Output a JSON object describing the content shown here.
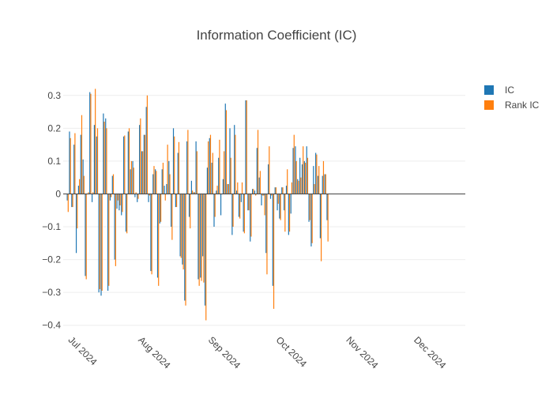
{
  "chart_data": {
    "type": "bar",
    "title": "Information Coefficient (IC)",
    "xlabel": "",
    "ylabel": "",
    "ylim": [
      -0.42,
      0.35
    ],
    "yticks": [
      -0.4,
      -0.3,
      -0.2,
      -0.1,
      0,
      0.1,
      0.2,
      0.3
    ],
    "ytick_labels": [
      "−0.4",
      "−0.3",
      "−0.2",
      "−0.1",
      "0",
      "0.1",
      "0.2",
      "0.3"
    ],
    "xlim": [
      "2024-06-29",
      "2024-12-24"
    ],
    "xticks": [
      {
        "date": "2024-07-01",
        "label": "Jul 2024"
      },
      {
        "date": "2024-08-01",
        "label": "Aug 2024"
      },
      {
        "date": "2024-09-01",
        "label": "Sep 2024"
      },
      {
        "date": "2024-10-01",
        "label": "Oct 2024"
      },
      {
        "date": "2024-11-01",
        "label": "Nov 2024"
      },
      {
        "date": "2024-12-01",
        "label": "Dec 2024"
      }
    ],
    "grid": true,
    "legend_position": "top-right",
    "series": [
      {
        "name": "IC",
        "color": "#1f77b4"
      },
      {
        "name": "Rank IC",
        "color": "#ff7f0e"
      }
    ],
    "points": [
      [
        "2024-07-01",
        -0.02,
        -0.055
      ],
      [
        "2024-07-02",
        0.19,
        0.17
      ],
      [
        "2024-07-03",
        -0.04,
        -0.04
      ],
      [
        "2024-07-04",
        0.15,
        0.185
      ],
      [
        "2024-07-05",
        -0.18,
        -0.105
      ],
      [
        "2024-07-06",
        0.025,
        0.045
      ],
      [
        "2024-07-07",
        0.18,
        0.24
      ],
      [
        "2024-07-08",
        0.105,
        0.055
      ],
      [
        "2024-07-09",
        -0.25,
        -0.26
      ],
      [
        "2024-07-10",
        0.0,
        0.005
      ],
      [
        "2024-07-11",
        0.31,
        0.305
      ],
      [
        "2024-07-12",
        -0.025,
        0.005
      ],
      [
        "2024-07-13",
        0.21,
        0.32
      ],
      [
        "2024-07-14",
        0.175,
        0.2
      ],
      [
        "2024-07-15",
        -0.3,
        -0.29
      ],
      [
        "2024-07-16",
        -0.31,
        -0.295
      ],
      [
        "2024-07-17",
        0.245,
        0.22
      ],
      [
        "2024-07-18",
        0.23,
        0.2
      ],
      [
        "2024-07-19",
        -0.295,
        -0.28
      ],
      [
        "2024-07-20",
        -0.02,
        -0.01
      ],
      [
        "2024-07-21",
        0.055,
        0.06
      ],
      [
        "2024-07-22",
        -0.2,
        -0.22
      ],
      [
        "2024-07-23",
        -0.045,
        -0.02
      ],
      [
        "2024-07-24",
        -0.05,
        -0.035
      ],
      [
        "2024-07-25",
        -0.065,
        -0.055
      ],
      [
        "2024-07-26",
        0.175,
        0.178
      ],
      [
        "2024-07-27",
        -0.115,
        -0.12
      ],
      [
        "2024-07-28",
        0.19,
        0.2
      ],
      [
        "2024-07-29",
        0.075,
        0.1
      ],
      [
        "2024-07-30",
        0.1,
        0.08
      ],
      [
        "2024-07-31",
        -0.01,
        0.005
      ],
      [
        "2024-08-01",
        -0.025,
        -0.015
      ],
      [
        "2024-08-02",
        0.21,
        0.23
      ],
      [
        "2024-08-03",
        0.13,
        0.13
      ],
      [
        "2024-08-04",
        0.18,
        0.18
      ],
      [
        "2024-08-05",
        0.265,
        0.3
      ],
      [
        "2024-08-06",
        -0.025,
        -0.005
      ],
      [
        "2024-08-07",
        -0.235,
        -0.245
      ],
      [
        "2024-08-08",
        0.06,
        0.085
      ],
      [
        "2024-08-09",
        0.075,
        0.07
      ],
      [
        "2024-08-10",
        -0.255,
        -0.28
      ],
      [
        "2024-08-11",
        -0.09,
        -0.085
      ],
      [
        "2024-08-12",
        0.075,
        0.095
      ],
      [
        "2024-08-13",
        0.025,
        -0.02
      ],
      [
        "2024-08-14",
        0.03,
        0.15
      ],
      [
        "2024-08-15",
        0.1,
        0.06
      ],
      [
        "2024-08-16",
        -0.1,
        -0.14
      ],
      [
        "2024-08-17",
        0.2,
        0.175
      ],
      [
        "2024-08-18",
        -0.04,
        -0.04
      ],
      [
        "2024-08-19",
        0.125,
        0.158
      ],
      [
        "2024-08-20",
        -0.19,
        -0.195
      ],
      [
        "2024-08-21",
        -0.215,
        -0.23
      ],
      [
        "2024-08-22",
        -0.325,
        -0.34
      ],
      [
        "2024-08-23",
        0.16,
        0.195
      ],
      [
        "2024-08-24",
        -0.07,
        -0.105
      ],
      [
        "2024-08-25",
        0.04,
        0.01
      ],
      [
        "2024-08-26",
        0.005,
        0.005
      ],
      [
        "2024-08-27",
        0.16,
        0.13
      ],
      [
        "2024-08-28",
        -0.26,
        -0.28
      ],
      [
        "2024-08-29",
        -0.255,
        -0.265
      ],
      [
        "2024-08-30",
        -0.19,
        -0.27
      ],
      [
        "2024-08-31",
        -0.34,
        -0.385
      ],
      [
        "2024-09-01",
        0.08,
        0.16
      ],
      [
        "2024-09-02",
        0.17,
        0.18
      ],
      [
        "2024-09-03",
        0.095,
        0.125
      ],
      [
        "2024-09-04",
        -0.1,
        -0.07
      ],
      [
        "2024-09-05",
        0.01,
        0.025
      ],
      [
        "2024-09-06",
        0.11,
        0.165
      ],
      [
        "2024-09-07",
        -0.065,
        0.0
      ],
      [
        "2024-09-08",
        0.045,
        0.13
      ],
      [
        "2024-09-09",
        0.275,
        0.255
      ],
      [
        "2024-09-10",
        0.03,
        0.03
      ],
      [
        "2024-09-11",
        0.2,
        0.11
      ],
      [
        "2024-09-12",
        -0.125,
        -0.1
      ],
      [
        "2024-09-13",
        0.21,
        0.18
      ],
      [
        "2024-09-14",
        0.01,
        0.035
      ],
      [
        "2024-09-15",
        -0.07,
        -0.075
      ],
      [
        "2024-09-16",
        -0.025,
        0.035
      ],
      [
        "2024-09-17",
        -0.115,
        -0.12
      ],
      [
        "2024-09-18",
        0.285,
        0.285
      ],
      [
        "2024-09-19",
        -0.05,
        -0.05
      ],
      [
        "2024-09-20",
        -0.145,
        -0.13
      ],
      [
        "2024-09-21",
        0.015,
        0.015
      ],
      [
        "2024-09-22",
        0.01,
        -0.005
      ],
      [
        "2024-09-23",
        0.14,
        0.195
      ],
      [
        "2024-09-24",
        0.05,
        0.07
      ],
      [
        "2024-09-25",
        -0.035,
        -0.005
      ],
      [
        "2024-09-26",
        -0.005,
        -0.065
      ],
      [
        "2024-09-27",
        -0.18,
        -0.245
      ],
      [
        "2024-09-28",
        0.09,
        0.145
      ],
      [
        "2024-09-29",
        -0.015,
        -0.005
      ],
      [
        "2024-09-30",
        -0.28,
        -0.35
      ],
      [
        "2024-10-01",
        0.02,
        0.02
      ],
      [
        "2024-10-02",
        -0.05,
        -0.03
      ],
      [
        "2024-10-03",
        -0.075,
        -0.08
      ],
      [
        "2024-10-04",
        0.02,
        0.02
      ],
      [
        "2024-10-05",
        -0.05,
        -0.115
      ],
      [
        "2024-10-06",
        0.025,
        0.075
      ],
      [
        "2024-10-07",
        -0.125,
        -0.115
      ],
      [
        "2024-10-08",
        -0.06,
        0.035
      ],
      [
        "2024-10-09",
        0.14,
        0.18
      ],
      [
        "2024-10-10",
        0.145,
        0.1
      ],
      [
        "2024-10-11",
        0.045,
        0.04
      ],
      [
        "2024-10-12",
        0.11,
        0.05
      ],
      [
        "2024-10-13",
        0.09,
        0.145
      ],
      [
        "2024-10-14",
        0.1,
        0.095
      ],
      [
        "2024-10-15",
        0.145,
        0.11
      ],
      [
        "2024-10-16",
        -0.085,
        -0.08
      ],
      [
        "2024-10-17",
        -0.16,
        -0.15
      ],
      [
        "2024-10-18",
        0.085,
        0.03
      ],
      [
        "2024-10-19",
        0.125,
        0.12
      ],
      [
        "2024-10-20",
        0.055,
        0.085
      ],
      [
        "2024-10-21",
        -0.135,
        -0.205
      ],
      [
        "2024-10-22",
        0.055,
        0.1
      ],
      [
        "2024-10-23",
        0.06,
        0.06
      ],
      [
        "2024-10-24",
        -0.08,
        -0.145
      ]
    ]
  }
}
